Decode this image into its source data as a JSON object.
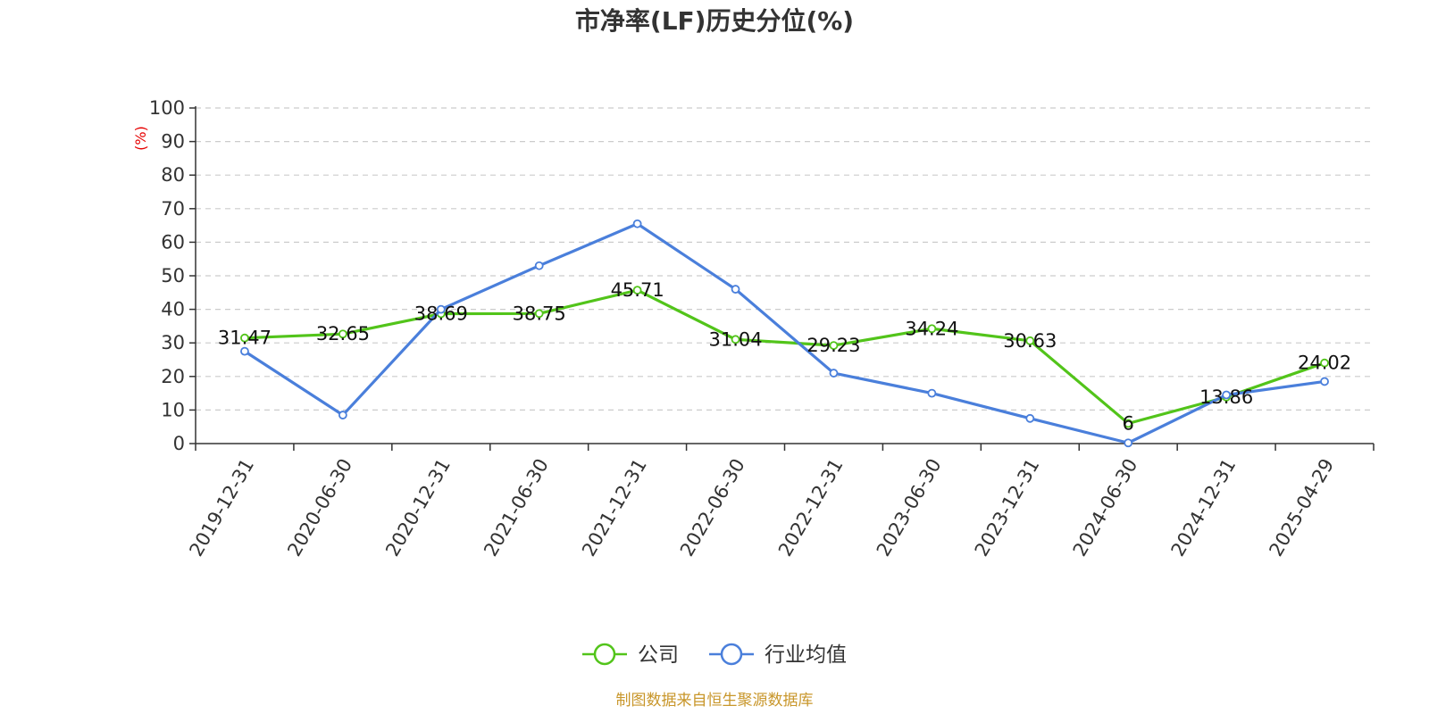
{
  "chart_data": {
    "type": "line",
    "title": "市净率(LF)历史分位(%)",
    "ylabel": "(%)",
    "xlabel": "",
    "ylim": [
      0,
      100
    ],
    "yticks": [
      0,
      10,
      20,
      30,
      40,
      50,
      60,
      70,
      80,
      90,
      100
    ],
    "grid": true,
    "legend_position": "bottom-center",
    "categories": [
      "2019-12-31",
      "2020-06-30",
      "2020-12-31",
      "2021-06-30",
      "2021-12-31",
      "2022-06-30",
      "2022-12-31",
      "2023-06-30",
      "2023-12-31",
      "2024-06-30",
      "2024-12-31",
      "2025-04-29"
    ],
    "series": [
      {
        "name": "公司",
        "color": "#52c41a",
        "values": [
          31.47,
          32.65,
          38.69,
          38.75,
          45.71,
          31.04,
          29.23,
          34.24,
          30.63,
          6,
          13.86,
          24.02
        ],
        "data_labels": [
          "31.47",
          "32.65",
          "38.69",
          "38.75",
          "45.71",
          "31.04",
          "29.23",
          "34.24",
          "30.63",
          "6",
          "13.86",
          "24.02"
        ]
      },
      {
        "name": "行业均值",
        "color": "#4a7fdb",
        "values": [
          27.5,
          8.5,
          40,
          53,
          65.5,
          46,
          21,
          15,
          7.5,
          0.2,
          14.5,
          18.5
        ]
      }
    ],
    "source": "制图数据来自恒生聚源数据库"
  }
}
